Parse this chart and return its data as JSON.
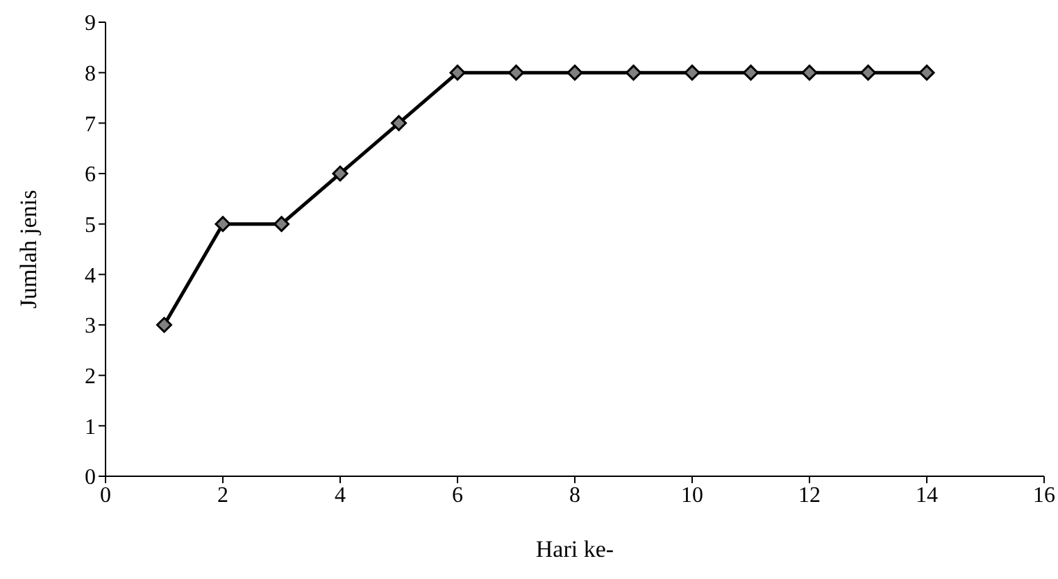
{
  "chart_data": {
    "type": "line",
    "xlabel": "Hari ke-",
    "ylabel": "Jumlah jenis",
    "x": [
      1,
      2,
      3,
      4,
      5,
      6,
      7,
      8,
      9,
      10,
      11,
      12,
      13,
      14
    ],
    "series": [
      {
        "color": "#000000",
        "values": [
          3,
          5,
          5,
          6,
          7,
          8,
          8,
          8,
          8,
          8,
          8,
          8,
          8,
          8
        ]
      }
    ],
    "xlim": [
      0,
      16
    ],
    "xticks": [
      0,
      2,
      4,
      6,
      8,
      10,
      12,
      14,
      16
    ],
    "ylim": [
      0,
      9
    ],
    "yticks": [
      0,
      1,
      2,
      3,
      4,
      5,
      6,
      7,
      8,
      9
    ],
    "grid": false,
    "legend": false,
    "marker": "diamond",
    "line_style": "solid"
  }
}
